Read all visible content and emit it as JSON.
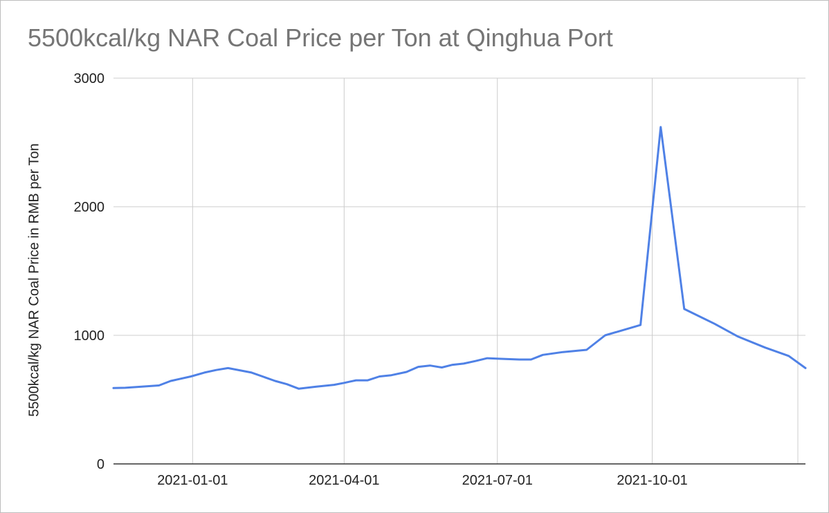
{
  "chart_data": {
    "type": "line",
    "title": "5500kcal/kg NAR Coal Price per Ton at Qinghua Port",
    "xlabel": "",
    "ylabel": "5500kcal/kg NAR Coal Price in RMB per Ton",
    "ylim": [
      0,
      3000
    ],
    "xlim": [
      "2020-11-15",
      "2021-12-31"
    ],
    "y_ticks": [
      "0",
      "1000",
      "2000",
      "3000"
    ],
    "x_ticks": [
      "2021-01-01",
      "2021-04-01",
      "2021-07-01",
      "2021-10-01"
    ],
    "grid": true,
    "legend": "none",
    "series": [
      {
        "color": "#4f81e6",
        "x": [
          "2020-11-15",
          "2020-11-22",
          "2020-12-01",
          "2020-12-12",
          "2020-12-19",
          "2020-12-31",
          "2021-01-08",
          "2021-01-15",
          "2021-01-22",
          "2021-02-05",
          "2021-02-19",
          "2021-02-26",
          "2021-03-05",
          "2021-03-15",
          "2021-03-26",
          "2021-04-01",
          "2021-04-08",
          "2021-04-15",
          "2021-04-22",
          "2021-04-29",
          "2021-05-08",
          "2021-05-15",
          "2021-05-22",
          "2021-05-29",
          "2021-06-04",
          "2021-06-11",
          "2021-06-18",
          "2021-06-25",
          "2021-07-02",
          "2021-07-14",
          "2021-07-21",
          "2021-07-28",
          "2021-08-09",
          "2021-08-23",
          "2021-09-03",
          "2021-09-24",
          "2021-10-06",
          "2021-10-20",
          "2021-11-07",
          "2021-11-21",
          "2021-12-07",
          "2021-12-21",
          "2021-12-31"
        ],
        "y": [
          590,
          592,
          600,
          610,
          645,
          680,
          710,
          730,
          745,
          710,
          645,
          620,
          585,
          600,
          615,
          630,
          650,
          650,
          680,
          690,
          715,
          755,
          765,
          750,
          770,
          780,
          800,
          822,
          818,
          812,
          812,
          848,
          870,
          887,
          1000,
          1080,
          2620,
          1205,
          1090,
          990,
          905,
          840,
          745
        ]
      }
    ]
  }
}
